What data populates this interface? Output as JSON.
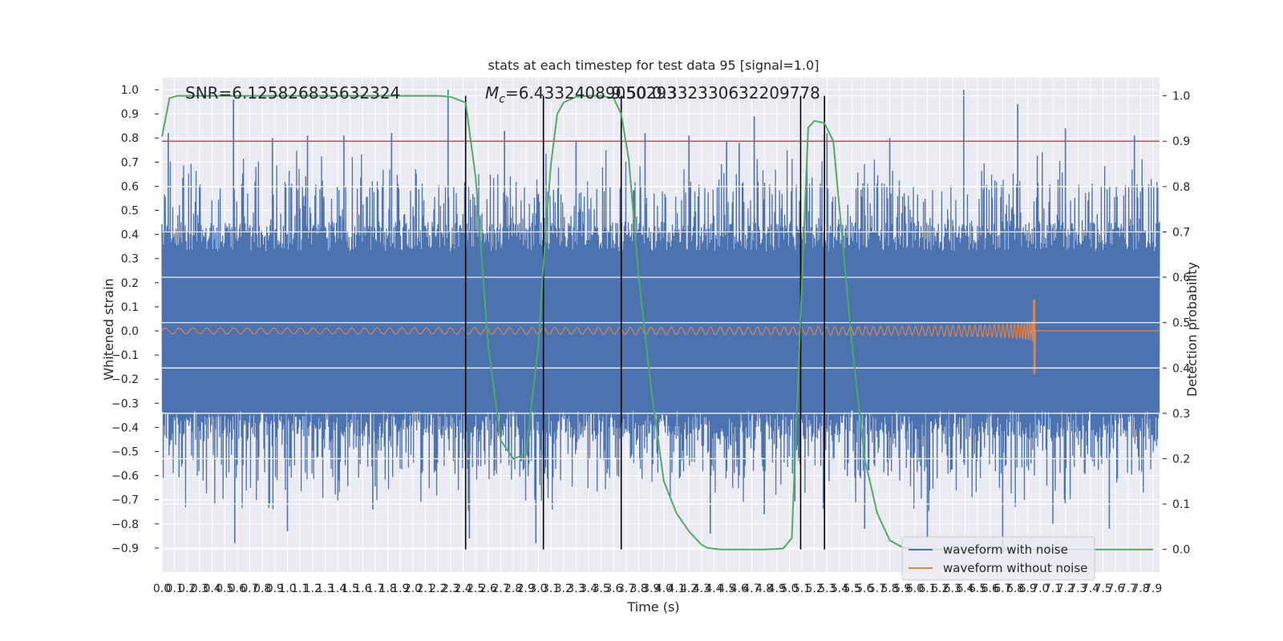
{
  "chart_data": {
    "type": "line",
    "title": "stats at each timestep for test data 95 [signal=1.0]",
    "xlabel": "Time (s)",
    "ylabel": "Whitened strain",
    "y2label": "Detection probability",
    "xlim": [
      0.0,
      7.95
    ],
    "ylim": [
      -1.0,
      1.05
    ],
    "y2lim": [
      -0.05,
      1.04
    ],
    "yticks": [
      -0.9,
      -0.8,
      -0.7,
      -0.6,
      -0.5,
      -0.4,
      -0.3,
      -0.2,
      -0.1,
      0.0,
      0.1,
      0.2,
      0.3,
      0.4,
      0.5,
      0.6,
      0.7,
      0.8,
      0.9,
      1.0
    ],
    "ytick_labels": [
      "−0.9",
      "−0.8",
      "−0.7",
      "−0.6",
      "−0.5",
      "−0.4",
      "−0.3",
      "−0.2",
      "−0.1",
      "0.0",
      "0.1",
      "0.2",
      "0.3",
      "0.4",
      "0.5",
      "0.6",
      "0.7",
      "0.8",
      "0.9",
      "1.0"
    ],
    "y2ticks": [
      0.0,
      0.1,
      0.2,
      0.3,
      0.4,
      0.5,
      0.6,
      0.7,
      0.8,
      0.9,
      1.0
    ],
    "y2tick_labels": [
      "0.0",
      "0.1",
      "0.2",
      "0.3",
      "0.4",
      "0.5",
      "0.6",
      "0.7",
      "0.8",
      "0.9",
      "1.0"
    ],
    "xtick_step": 0.1,
    "xtick_count": 80,
    "annotations": {
      "snr": "SNR=6.125826835632324",
      "mc_prefix": "M",
      "mc_sub": "c",
      "mc_value": "=6.43324089050293",
      "overlap": "9.50 0.332330632209778"
    },
    "threshold_line": {
      "y2": 0.9,
      "color": "#c44e52"
    },
    "vlines": [
      2.42,
      3.04,
      3.66,
      5.09,
      5.28
    ],
    "series": [
      {
        "name": "waveform with noise",
        "color": "#4c72b0",
        "description_range": [
          -0.9,
          1.0
        ],
        "peaks": [
          [
            0.05,
            0.82
          ],
          [
            0.57,
            0.96
          ],
          [
            0.88,
            0.8
          ],
          [
            1.16,
            0.81
          ],
          [
            1.45,
            0.81
          ],
          [
            1.83,
            0.82
          ],
          [
            2.28,
            1.0
          ],
          [
            2.73,
            0.83
          ],
          [
            3.3,
            0.79
          ],
          [
            3.85,
            0.82
          ],
          [
            4.2,
            0.81
          ],
          [
            4.5,
            0.79
          ],
          [
            4.6,
            0.78
          ],
          [
            4.72,
            0.89
          ],
          [
            5.3,
            0.82
          ],
          [
            5.8,
            0.8
          ],
          [
            6.39,
            1.0
          ],
          [
            6.82,
            0.94
          ],
          [
            7.2,
            0.84
          ],
          [
            7.75,
            0.81
          ]
        ],
        "troughs": [
          [
            0.58,
            -0.88
          ],
          [
            1.0,
            -0.83
          ],
          [
            1.68,
            -0.74
          ],
          [
            2.45,
            -0.86
          ],
          [
            2.98,
            -0.88
          ],
          [
            4.37,
            -0.84
          ],
          [
            4.8,
            -0.76
          ],
          [
            5.6,
            -0.82
          ],
          [
            6.1,
            -0.86
          ],
          [
            6.7,
            -0.92
          ],
          [
            7.1,
            -0.8
          ],
          [
            7.55,
            -0.82
          ]
        ]
      },
      {
        "name": "waveform without noise",
        "color": "#dd8452",
        "base_amplitude": 0.012,
        "merger_time": 6.96,
        "peak_max": 0.13,
        "peak_min": -0.18
      },
      {
        "name": "detection probability",
        "color": "#55a868",
        "axis": "y2",
        "x": [
          0.0,
          0.06,
          0.12,
          0.3,
          1.0,
          1.5,
          2.0,
          2.2,
          2.3,
          2.42,
          2.5,
          2.6,
          2.7,
          2.8,
          2.9,
          3.0,
          3.04,
          3.1,
          3.15,
          3.2,
          3.3,
          3.4,
          3.5,
          3.6,
          3.66,
          3.72,
          3.8,
          3.9,
          4.0,
          4.1,
          4.2,
          4.3,
          4.35,
          4.45,
          4.6,
          4.8,
          4.95,
          5.02,
          5.09,
          5.15,
          5.2,
          5.28,
          5.35,
          5.5,
          5.6,
          5.7,
          5.8,
          5.9,
          6.0,
          6.5,
          7.0,
          7.5,
          7.9
        ],
        "y": [
          0.91,
          0.995,
          1.0,
          1.0,
          1.0,
          1.0,
          1.0,
          1.0,
          0.998,
          0.985,
          0.82,
          0.45,
          0.24,
          0.2,
          0.21,
          0.45,
          0.63,
          0.85,
          0.96,
          0.985,
          0.998,
          1.0,
          1.0,
          0.995,
          0.96,
          0.86,
          0.6,
          0.35,
          0.15,
          0.08,
          0.04,
          0.01,
          0.003,
          0.0,
          0.0,
          0.0,
          0.002,
          0.025,
          0.52,
          0.93,
          0.945,
          0.94,
          0.9,
          0.45,
          0.2,
          0.08,
          0.02,
          0.005,
          0.0,
          0.0,
          0.0,
          0.0,
          0.0
        ]
      }
    ],
    "legend": {
      "position": "lower right",
      "items": [
        "waveform with noise",
        "waveform without noise"
      ]
    }
  }
}
